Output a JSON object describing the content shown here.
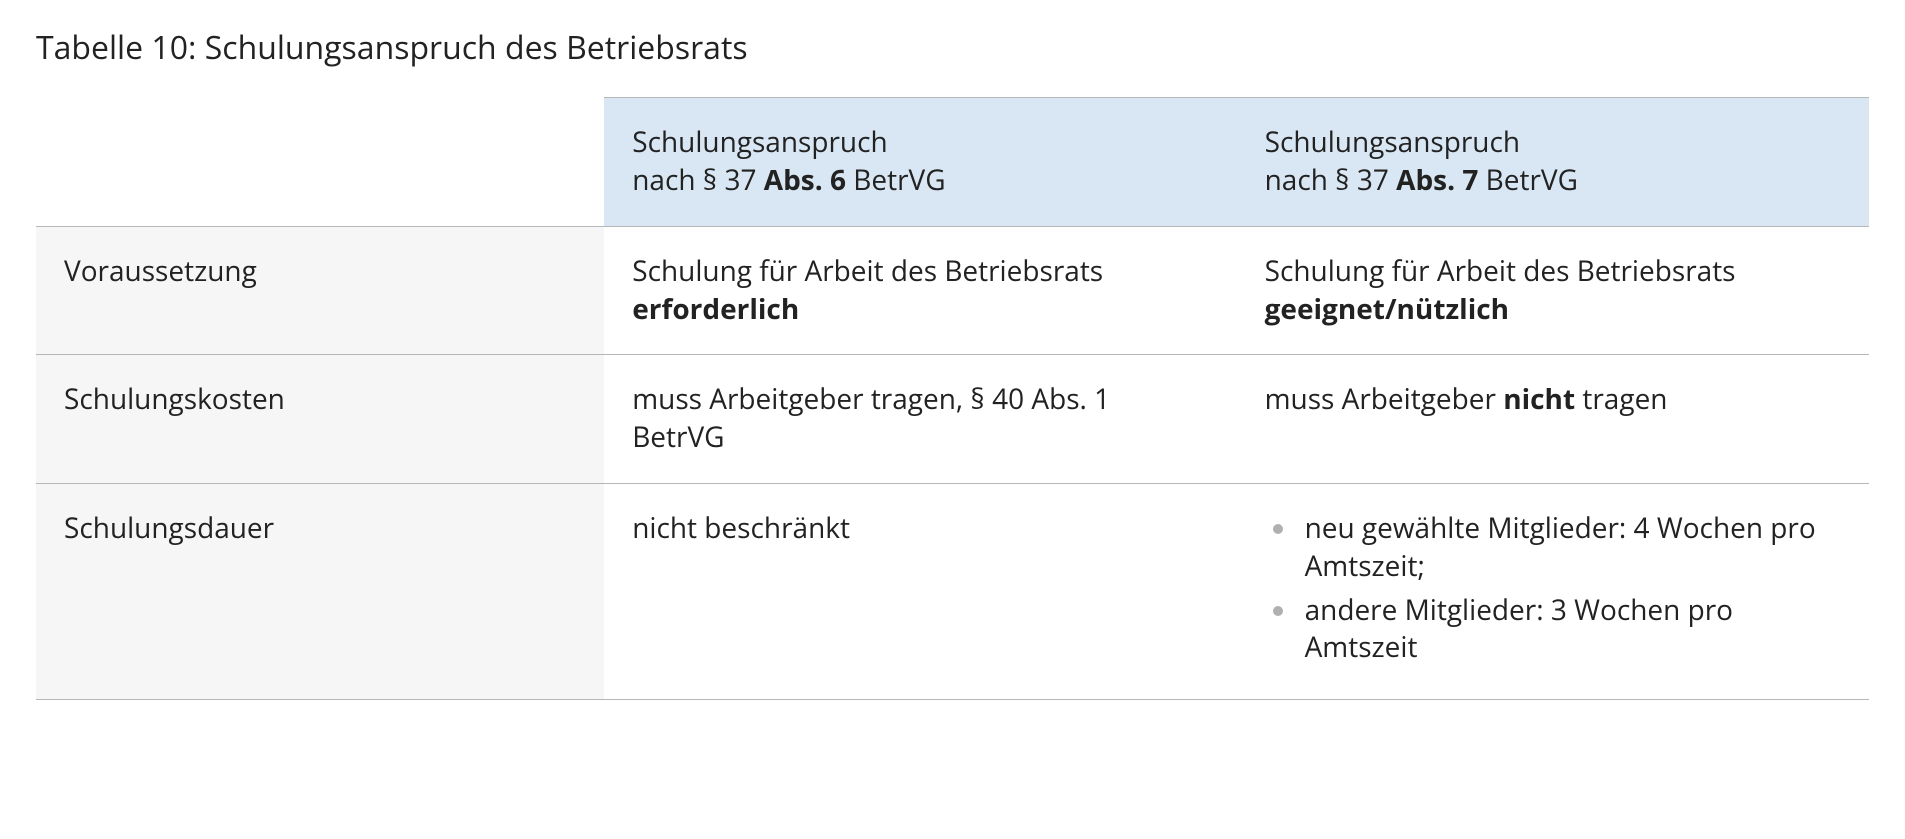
{
  "caption": "Tabelle 10: Schulungsanspruch des Betriebsrats",
  "colors": {
    "header_bg": "#d8e7f3",
    "rowhead_bg": "#f6f6f6",
    "border": "#b7b7b7",
    "bullet": "#b0b0b0",
    "text": "#222222"
  },
  "table": {
    "column_headers": [
      {
        "prefix": "Schulungsanspruch",
        "line2_pre": "nach § 37 ",
        "bold": "Abs. 6",
        "line2_post": " BetrVG"
      },
      {
        "prefix": "Schulungsanspruch",
        "line2_pre": "nach § 37 ",
        "bold": "Abs. 7",
        "line2_post": " BetrVG"
      }
    ],
    "rows": [
      {
        "label": "Voraussetzung",
        "cells": [
          {
            "pre": "Schulung für Arbeit des Betriebsrats ",
            "bold": "erforderlich",
            "post": ""
          },
          {
            "pre": "Schulung für Arbeit des Betriebsrats ",
            "bold": "geeignet/nützlich",
            "post": ""
          }
        ]
      },
      {
        "label": "Schulungskosten",
        "cells": [
          {
            "pre": "muss Arbeitgeber tragen, § 40 Abs. 1 BetrVG",
            "bold": "",
            "post": ""
          },
          {
            "pre": "muss Arbeitgeber ",
            "bold": "nicht",
            "post": " tragen"
          }
        ]
      },
      {
        "label": "Schulungsdauer",
        "cells": [
          {
            "pre": "nicht beschränkt",
            "bold": "",
            "post": ""
          },
          {
            "bullets": [
              "neu gewählte Mitglieder: 4 Wochen pro Amtszeit;",
              "andere Mitglieder: 3 Wochen pro Amtszeit"
            ]
          }
        ]
      }
    ]
  }
}
